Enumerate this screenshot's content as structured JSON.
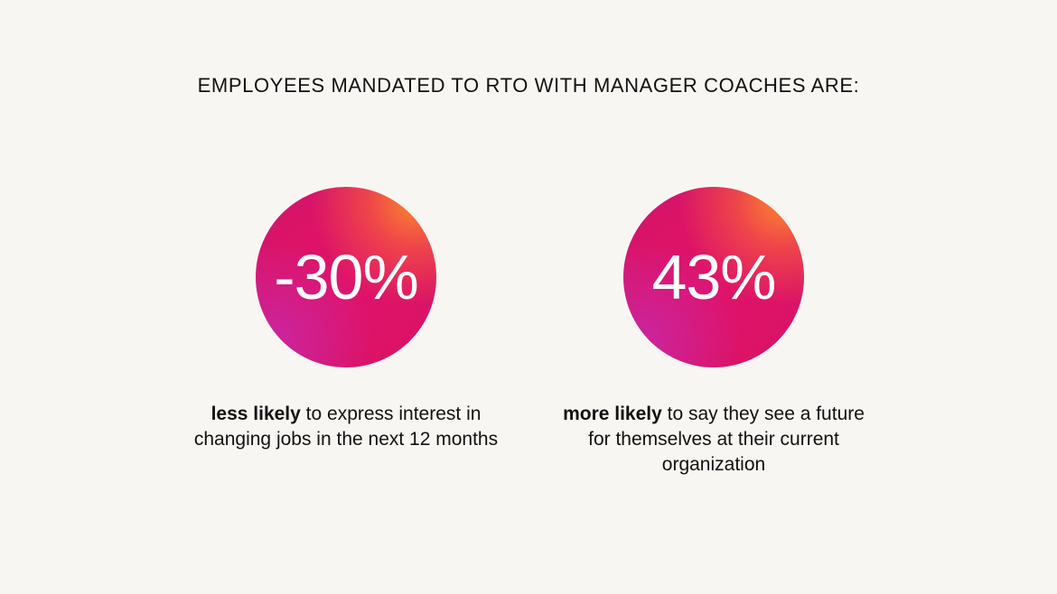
{
  "headline": "EMPLOYEES MANDATED TO RTO WITH MANAGER COACHES ARE:",
  "colors": {
    "background": "#f8f6f2",
    "circle_primary": "#e0126a",
    "circle_highlight": "#ff8c28",
    "circle_shadow": "#c828aa",
    "text": "#111111"
  },
  "stats": [
    {
      "value": "-30%",
      "emphasis": "less likely",
      "caption": " to express interest in changing jobs in the next 12 months"
    },
    {
      "value": "43%",
      "emphasis": "more likely",
      "caption": " to say they see a future for themselves at their current organization"
    }
  ]
}
